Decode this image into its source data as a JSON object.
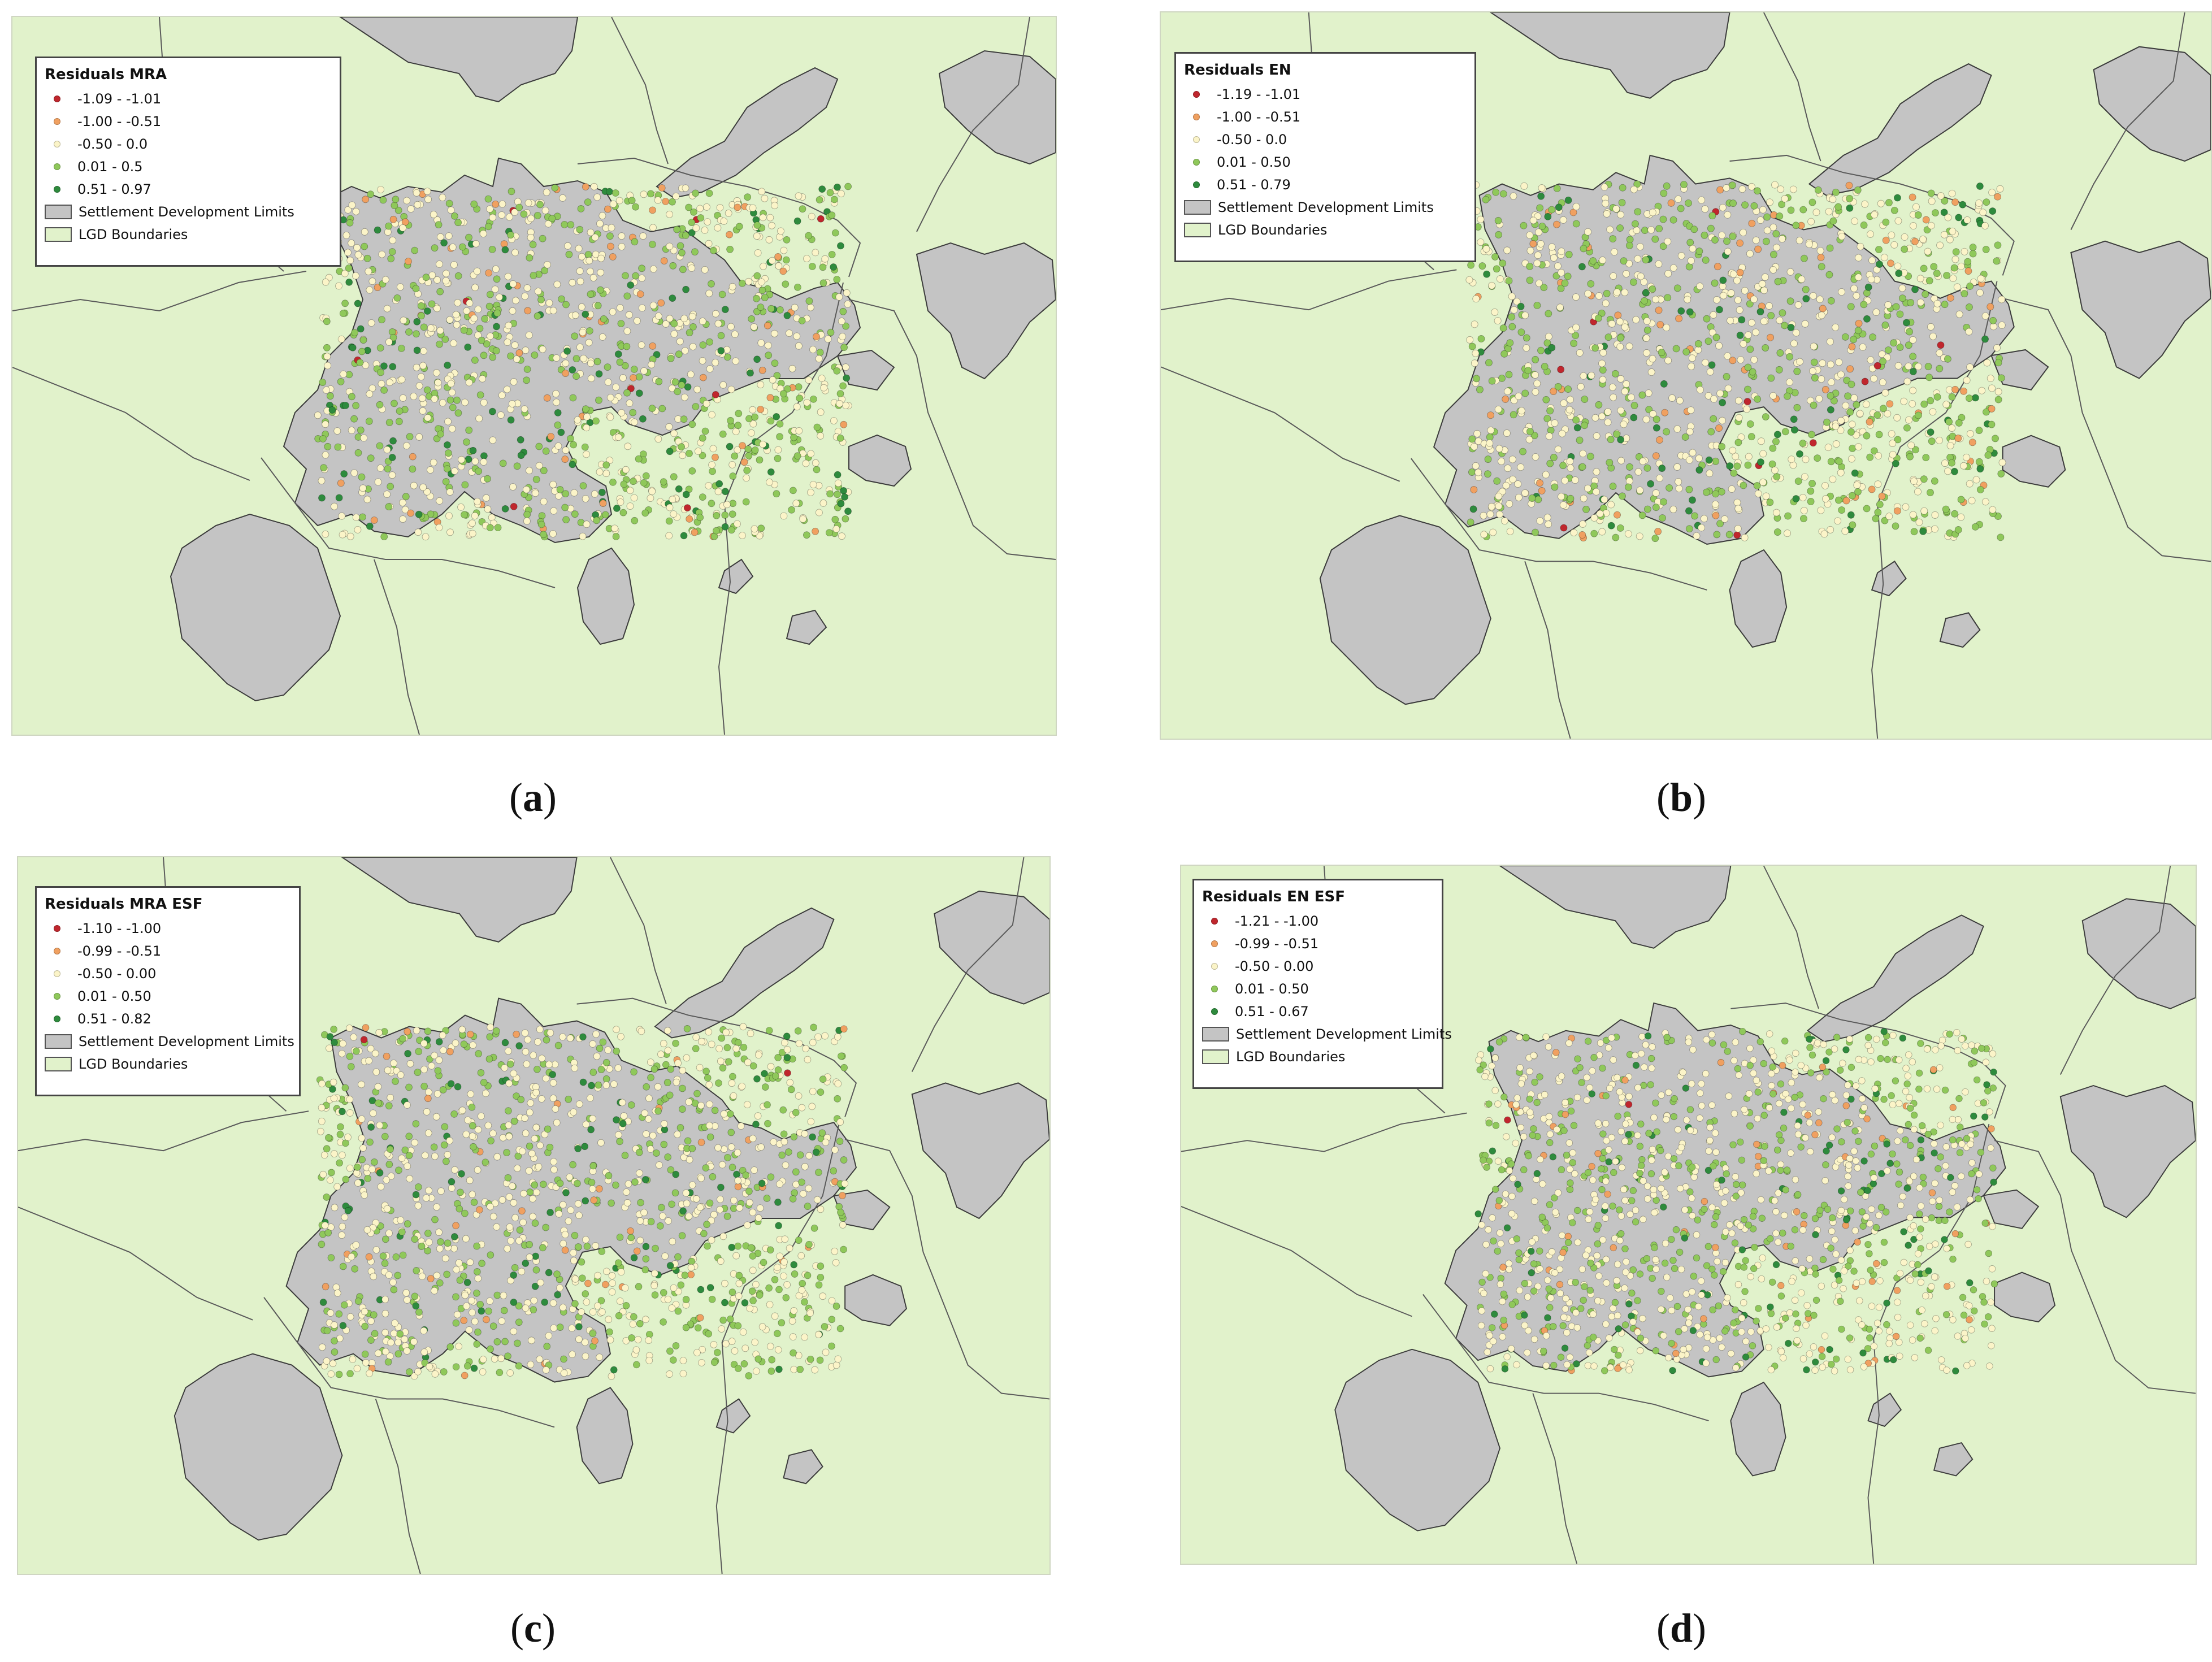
{
  "colors": {
    "lgd_fill": "#e1f2cb",
    "settlement_fill": "#c4c4c4",
    "boundary_line": "#5a5a5a",
    "residual_class_1": "#c0262d",
    "residual_class_2": "#f0a060",
    "residual_class_3": "#fbf4c8",
    "residual_class_4": "#8fc85a",
    "residual_class_5": "#2e8b3d"
  },
  "panels": [
    {
      "id": "a",
      "caption_open": "(",
      "caption_letter": "a",
      "caption_close": ")",
      "legend": {
        "title": "Residuals MRA",
        "classes": [
          "-1.09 - -1.01",
          "-1.00 - -0.51",
          "-0.50 - 0.0",
          "0.01 - 0.5",
          "0.51 - 0.97"
        ],
        "settlement_label": "Settlement Development Limits",
        "lgd_label": "LGD Boundaries"
      }
    },
    {
      "id": "b",
      "caption_open": "(",
      "caption_letter": "b",
      "caption_close": ")",
      "legend": {
        "title": "Residuals EN",
        "classes": [
          "-1.19 - -1.01",
          "-1.00 - -0.51",
          "-0.50 - 0.0",
          "0.01 - 0.50",
          "0.51 - 0.79"
        ],
        "settlement_label": "Settlement Development Limits",
        "lgd_label": "LGD Boundaries"
      }
    },
    {
      "id": "c",
      "caption_open": "(",
      "caption_letter": "c",
      "caption_close": ")",
      "legend": {
        "title": "Residuals MRA ESF",
        "classes": [
          "-1.10 - -1.00",
          "-0.99 - -0.51",
          "-0.50 - 0.00",
          "0.01 - 0.50",
          "0.51 - 0.82"
        ],
        "settlement_label": "Settlement Development Limits",
        "lgd_label": "LGD Boundaries"
      }
    },
    {
      "id": "d",
      "caption_open": "(",
      "caption_letter": "d",
      "caption_close": ")",
      "legend": {
        "title": "Residuals EN ESF",
        "classes": [
          "-1.21 - -1.00",
          "-0.99 - -0.51",
          "-0.50 - 0.00",
          "0.01 - 0.50",
          "0.51 - 0.67"
        ],
        "settlement_label": "Settlement Development Limits",
        "lgd_label": "LGD Boundaries"
      }
    }
  ]
}
